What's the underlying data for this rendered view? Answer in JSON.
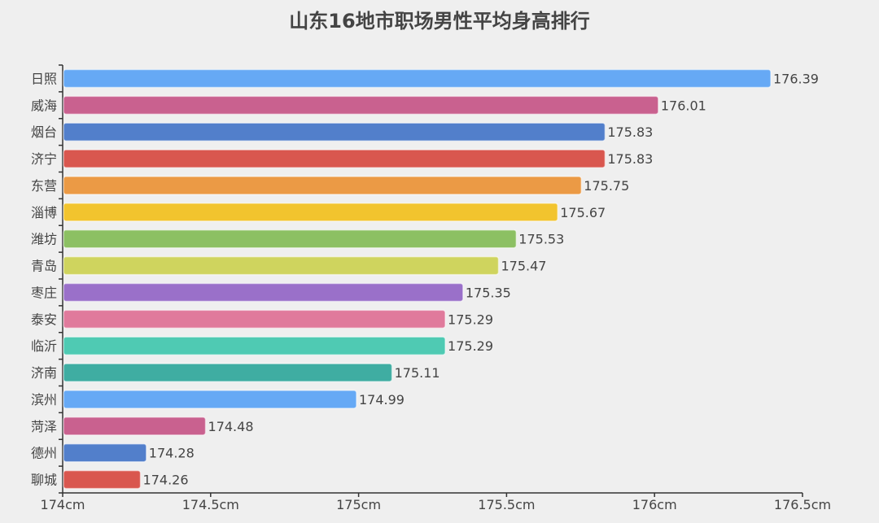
{
  "chart_data": {
    "type": "bar",
    "orientation": "horizontal",
    "title": "山东16地市职场男性平均身高排行",
    "categories": [
      "日照",
      "威海",
      "烟台",
      "济宁",
      "东营",
      "淄博",
      "潍坊",
      "青岛",
      "枣庄",
      "泰安",
      "临沂",
      "济南",
      "滨州",
      "菏泽",
      "德州",
      "聊城"
    ],
    "values": [
      176.39,
      176.01,
      175.83,
      175.83,
      175.75,
      175.67,
      175.53,
      175.47,
      175.35,
      175.29,
      175.29,
      175.11,
      174.99,
      174.48,
      174.28,
      174.26
    ],
    "colors": [
      "#66a9f5",
      "#c9618f",
      "#527fcb",
      "#d9574f",
      "#eb9a45",
      "#f2c42e",
      "#8cc063",
      "#cfd45e",
      "#9a70c9",
      "#e07a9c",
      "#4fcab3",
      "#3fada2",
      "#66a9f5",
      "#c9618f",
      "#527fcb",
      "#d9574f"
    ],
    "xlim": [
      174,
      176.5
    ],
    "xticks": [
      "174cm",
      "174.5cm",
      "175cm",
      "175.5cm",
      "176cm",
      "176.5cm"
    ],
    "xtick_values": [
      174,
      174.5,
      175,
      175.5,
      176,
      176.5
    ],
    "grid": false,
    "data_labels": true
  }
}
